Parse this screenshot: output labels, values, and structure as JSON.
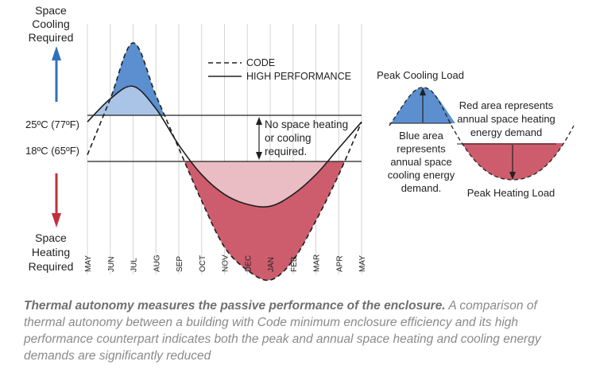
{
  "chart_data": [
    {
      "type": "line",
      "title": "",
      "x_ticks": [
        "MAY",
        "JUN",
        "JUL",
        "AUG",
        "SEP",
        "OCT",
        "NOV",
        "DEC",
        "JAN",
        "FEB",
        "MAR",
        "APR",
        "MAY"
      ],
      "y_levels": [
        {
          "label": "25ºC (77ºF)",
          "value": 25
        },
        {
          "label": "18ºC (65ºF)",
          "value": 18
        }
      ],
      "series": [
        {
          "name": "CODE",
          "style": "dashed",
          "x": [
            "MAY",
            "JUN",
            "JUL",
            "AUG",
            "SEP",
            "OCT",
            "NOV",
            "DEC",
            "JAN",
            "FEB",
            "MAR",
            "APR",
            "MAY"
          ],
          "values": [
            19,
            27.5,
            36,
            28,
            20,
            12,
            5,
            1.5,
            0,
            3,
            9,
            16,
            24
          ]
        },
        {
          "name": "HIGH PERFORMANCE",
          "style": "solid",
          "x": [
            "MAY",
            "JUN",
            "JUL",
            "AUG",
            "SEP",
            "OCT",
            "NOV",
            "DEC",
            "JAN",
            "FEB",
            "MAR",
            "APR",
            "MAY"
          ],
          "values": [
            24,
            27.5,
            29.4,
            26,
            20.5,
            16,
            13,
            11.5,
            11.2,
            13,
            16,
            20,
            24
          ]
        }
      ],
      "y_extremes": {
        "top": "Space Cooling Required",
        "bottom": "Space Heating Required"
      },
      "annotation": "No space heating or cooling required.",
      "grid": true,
      "legend": "top-center",
      "colors": {
        "cooling": "#5b8fcf",
        "cooling_light": "#a9c4e6",
        "heating": "#cd5d6d",
        "heating_light": "#eabcc3",
        "arrow_blue": "#2f72ba",
        "arrow_red": "#c0303c"
      }
    }
  ],
  "top_label": {
    "line1": "Space",
    "line2": "Cooling",
    "line3": "Required"
  },
  "bottom_label": {
    "line1": "Space",
    "line2": "Heating",
    "line3": "Required"
  },
  "legend": {
    "code": "CODE",
    "high_performance": "HIGH PERFORMANCE"
  },
  "gap_note": {
    "line1": "No space heating",
    "line2": "or cooling",
    "line3": "required."
  },
  "diagram": {
    "peak_cooling": "Peak Cooling Load",
    "peak_heating": "Peak Heating Load",
    "blue_text": [
      "Blue area",
      "represents",
      "annual space",
      "cooling energy",
      "demand."
    ],
    "red_text": [
      "Red area represents",
      "annual space heating",
      "energy demand"
    ]
  },
  "caption": {
    "bold": "Thermal autonomy measures the passive performance of the enclosure.",
    "rest": " A comparison of thermal autonomy between a building with Code minimum enclosure efficiency and its high performance counterpart indicates both the peak and annual space heating and cooling energy demands are significantly reduced"
  }
}
